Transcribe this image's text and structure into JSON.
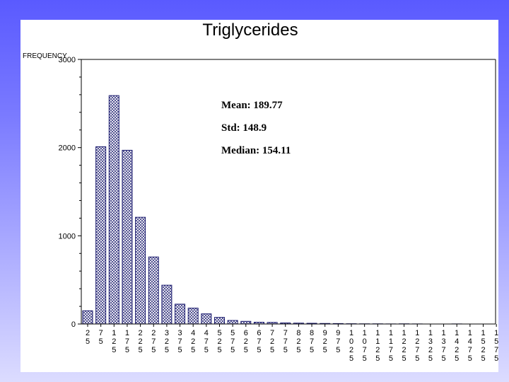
{
  "chart_data": {
    "type": "bar",
    "title": "Triglycerides",
    "ylabel": "FREQUENCY",
    "xlabel": "",
    "ylim": [
      0,
      3000
    ],
    "yticks": [
      0,
      1000,
      2000,
      3000
    ],
    "categories": [
      "25",
      "75",
      "125",
      "175",
      "225",
      "275",
      "325",
      "375",
      "425",
      "475",
      "525",
      "575",
      "625",
      "675",
      "725",
      "775",
      "825",
      "875",
      "925",
      "975",
      "1025",
      "1075",
      "1125",
      "1175",
      "1225",
      "1275",
      "1325",
      "1375",
      "1425",
      "1475",
      "1525",
      "1575"
    ],
    "values": [
      150,
      2010,
      2590,
      1970,
      1210,
      760,
      440,
      225,
      180,
      115,
      75,
      40,
      30,
      20,
      18,
      12,
      10,
      8,
      6,
      5,
      3,
      2,
      2,
      1,
      2,
      1,
      0,
      0,
      1,
      0,
      0,
      0
    ],
    "annotations": [
      {
        "label": "Mean:",
        "value": "189.77"
      },
      {
        "label": "Std:",
        "value": "148.9"
      },
      {
        "label": "Median:",
        "value": "154.11"
      }
    ],
    "colors": {
      "bar_stroke": "#1a1a6e",
      "hatch": "#1a1a6e",
      "axis": "#000000"
    }
  }
}
